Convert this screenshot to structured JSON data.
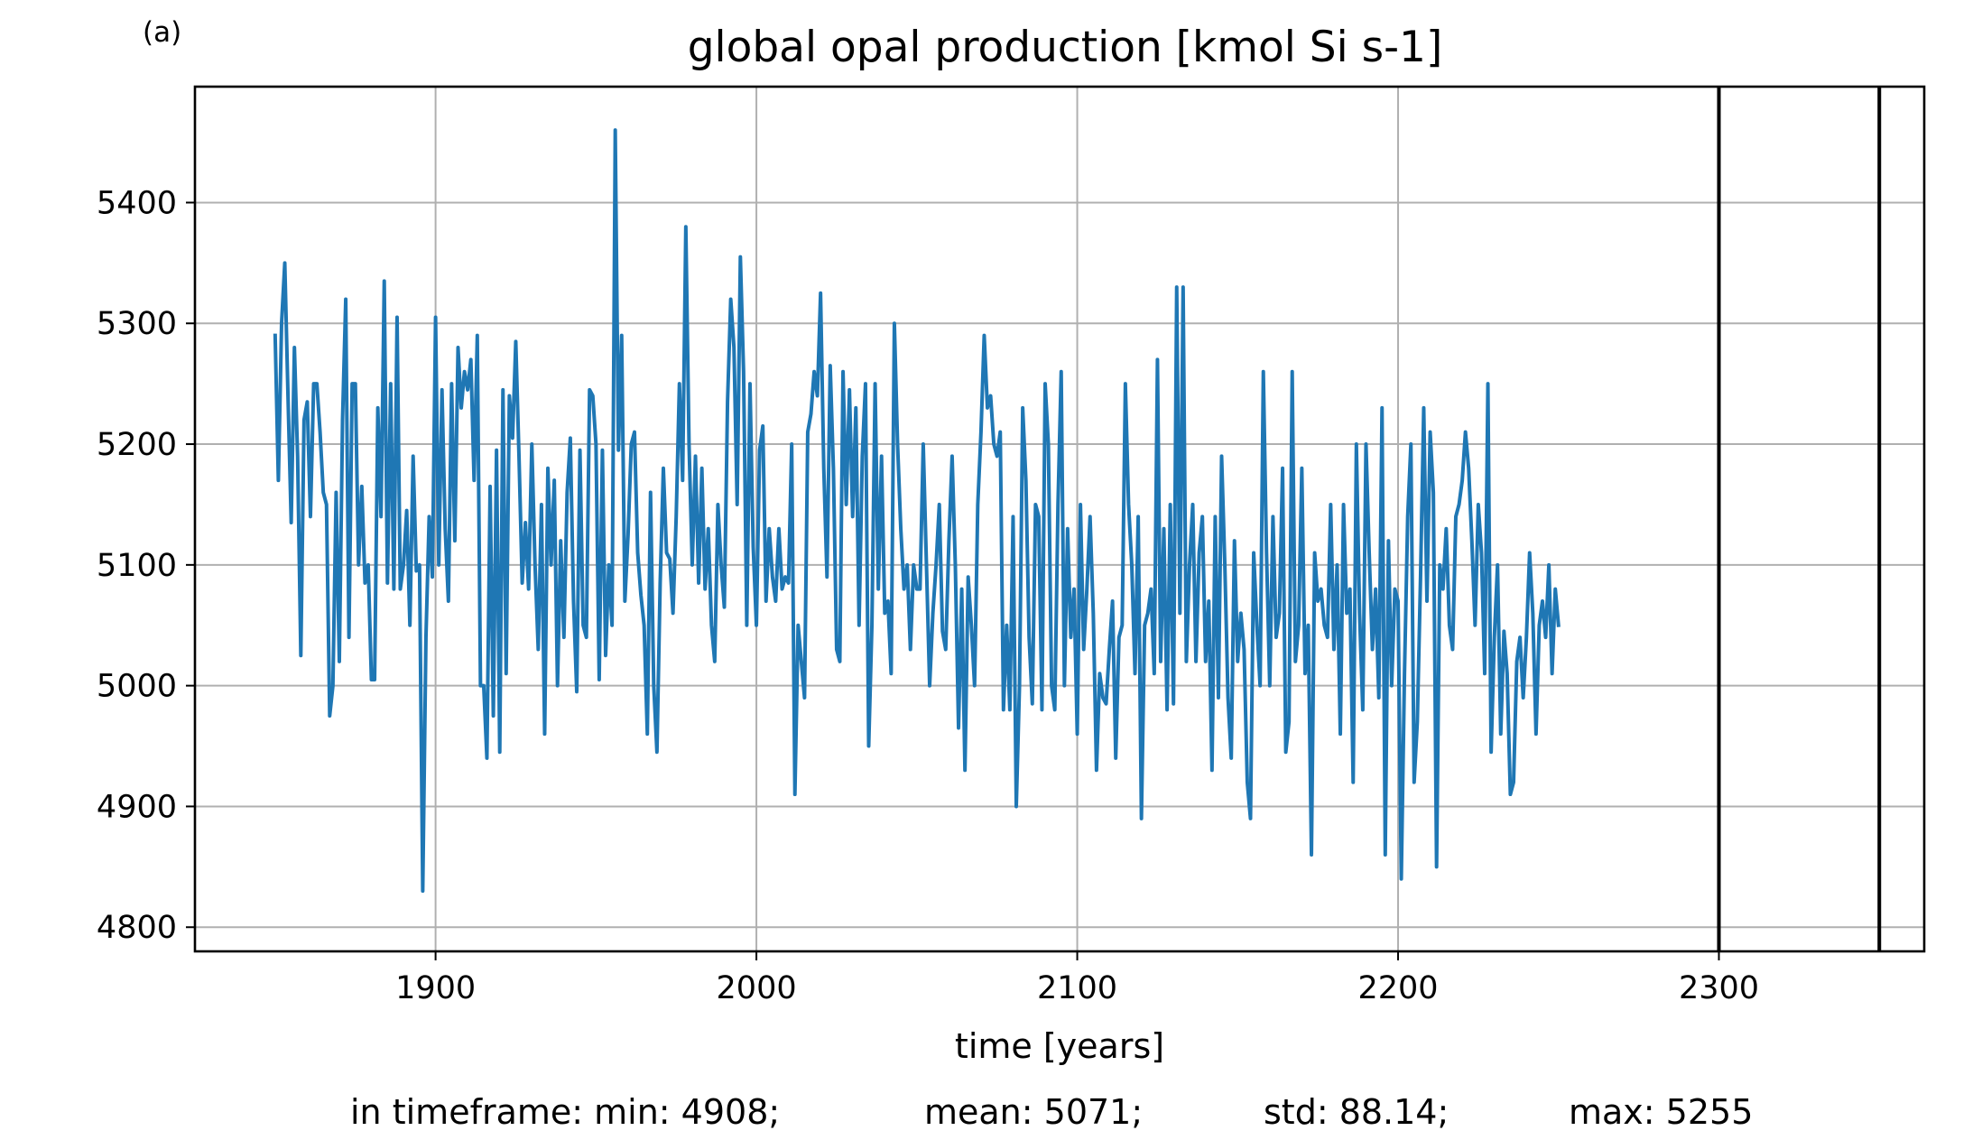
{
  "chart_data": {
    "type": "line",
    "panel_label": "(a)",
    "title": "global opal production [kmol Si s-1]",
    "xlabel": "time [years]",
    "ylabel": "",
    "xlim": [
      1825,
      2364
    ],
    "ylim": [
      4780,
      5496
    ],
    "xticks": [
      1900,
      2000,
      2100,
      2200,
      2300
    ],
    "yticks": [
      4800,
      4900,
      5000,
      5100,
      5200,
      5300,
      5400
    ],
    "xtick_labels": [
      "1900",
      "2000",
      "2100",
      "2200",
      "2300"
    ],
    "ytick_labels": [
      "4800",
      "4900",
      "5000",
      "5100",
      "5200",
      "5300",
      "5400"
    ],
    "grid": true,
    "vertical_lines": [
      2300,
      2350
    ],
    "series": [
      {
        "color": "#1f77b4",
        "x_start": 1850,
        "x_step": 1,
        "values": [
          5290,
          5170,
          5300,
          5350,
          5240,
          5135,
          5280,
          5190,
          5025,
          5220,
          5235,
          5140,
          5250,
          5250,
          5210,
          5160,
          5150,
          4975,
          5000,
          5160,
          5020,
          5220,
          5320,
          5040,
          5250,
          5250,
          5100,
          5165,
          5085,
          5100,
          5005,
          5005,
          5230,
          5140,
          5335,
          5085,
          5250,
          5080,
          5305,
          5080,
          5100,
          5145,
          5050,
          5190,
          5095,
          5100,
          4830,
          5040,
          5140,
          5090,
          5305,
          5100,
          5245,
          5130,
          5070,
          5250,
          5120,
          5280,
          5230,
          5260,
          5245,
          5270,
          5170,
          5290,
          5000,
          5000,
          4940,
          5165,
          4975,
          5195,
          4945,
          5245,
          5010,
          5240,
          5205,
          5285,
          5190,
          5085,
          5135,
          5080,
          5200,
          5100,
          5030,
          5150,
          4960,
          5180,
          5100,
          5170,
          5000,
          5120,
          5040,
          5160,
          5205,
          5070,
          4995,
          5195,
          5050,
          5040,
          5245,
          5240,
          5200,
          5005,
          5195,
          5025,
          5100,
          5050,
          5460,
          5195,
          5290,
          5070,
          5125,
          5200,
          5210,
          5110,
          5075,
          5050,
          4960,
          5160,
          5000,
          4945,
          5085,
          5180,
          5110,
          5105,
          5060,
          5140,
          5250,
          5170,
          5380,
          5200,
          5100,
          5190,
          5085,
          5180,
          5080,
          5130,
          5050,
          5020,
          5150,
          5100,
          5065,
          5235,
          5320,
          5280,
          5150,
          5355,
          5260,
          5050,
          5250,
          5115,
          5050,
          5195,
          5215,
          5070,
          5130,
          5090,
          5070,
          5130,
          5080,
          5090,
          5085,
          5200,
          4910,
          5050,
          5020,
          4990,
          5210,
          5225,
          5260,
          5240,
          5325,
          5180,
          5090,
          5265,
          5180,
          5030,
          5020,
          5260,
          5150,
          5245,
          5140,
          5230,
          5050,
          5190,
          5250,
          4950,
          5050,
          5250,
          5080,
          5190,
          5060,
          5070,
          5010,
          5300,
          5200,
          5130,
          5080,
          5100,
          5030,
          5100,
          5080,
          5080,
          5200,
          5100,
          5000,
          5060,
          5100,
          5150,
          5045,
          5030,
          5120,
          5190,
          5100,
          4965,
          5080,
          4930,
          5090,
          5050,
          5000,
          5150,
          5210,
          5290,
          5230,
          5240,
          5200,
          5190,
          5210,
          4980,
          5050,
          4980,
          5140,
          4900,
          5000,
          5230,
          5170,
          5040,
          4985,
          5150,
          5140,
          4980,
          5250,
          5200,
          5000,
          4980,
          5150,
          5260,
          5000,
          5130,
          5040,
          5080,
          4960,
          5150,
          5030,
          5080,
          5140,
          5060,
          4930,
          5010,
          4990,
          4985,
          5030,
          5070,
          4940,
          5040,
          5050,
          5250,
          5150,
          5100,
          5010,
          5140,
          4890,
          5050,
          5060,
          5080,
          5010,
          5270,
          5020,
          5130,
          4980,
          5150,
          4985,
          5330,
          5060,
          5330,
          5020,
          5100,
          5150,
          5020,
          5110,
          5140,
          5020,
          5070,
          4930,
          5140,
          4990,
          5190,
          5100,
          4990,
          4940,
          5120,
          5020,
          5060,
          5030,
          4920,
          4890,
          5110,
          5050,
          5000,
          5260,
          5110,
          5000,
          5140,
          5040,
          5060,
          5180,
          4945,
          4970,
          5260,
          5020,
          5050,
          5180,
          5010,
          5050,
          4860,
          5110,
          5070,
          5080,
          5050,
          5040,
          5150,
          5030,
          5100,
          4960,
          5150,
          5060,
          5080,
          4920,
          5200,
          5060,
          4980,
          5200,
          5110,
          5030,
          5080,
          4990,
          5230,
          4860,
          5120,
          5000,
          5080,
          5070,
          4840,
          5010,
          5140,
          5200,
          4920,
          4970,
          5090,
          5230,
          5070,
          5210,
          5160,
          4850,
          5100,
          5080,
          5130,
          5050,
          5030,
          5140,
          5150,
          5170,
          5210,
          5180,
          5120,
          5050,
          5150,
          5110,
          5010,
          5250,
          4945,
          5040,
          5100,
          4960,
          5045,
          5010,
          4910,
          4920,
          5020,
          5040,
          4990,
          5040,
          5110,
          5060,
          4960,
          5050,
          5070,
          5040,
          5100,
          5010,
          5080,
          5050
        ]
      }
    ]
  },
  "stats": {
    "min": "in timeframe: min: 4908;",
    "mean": "mean: 5071;",
    "std": "std: 88.14;",
    "max": "max: 5255"
  }
}
